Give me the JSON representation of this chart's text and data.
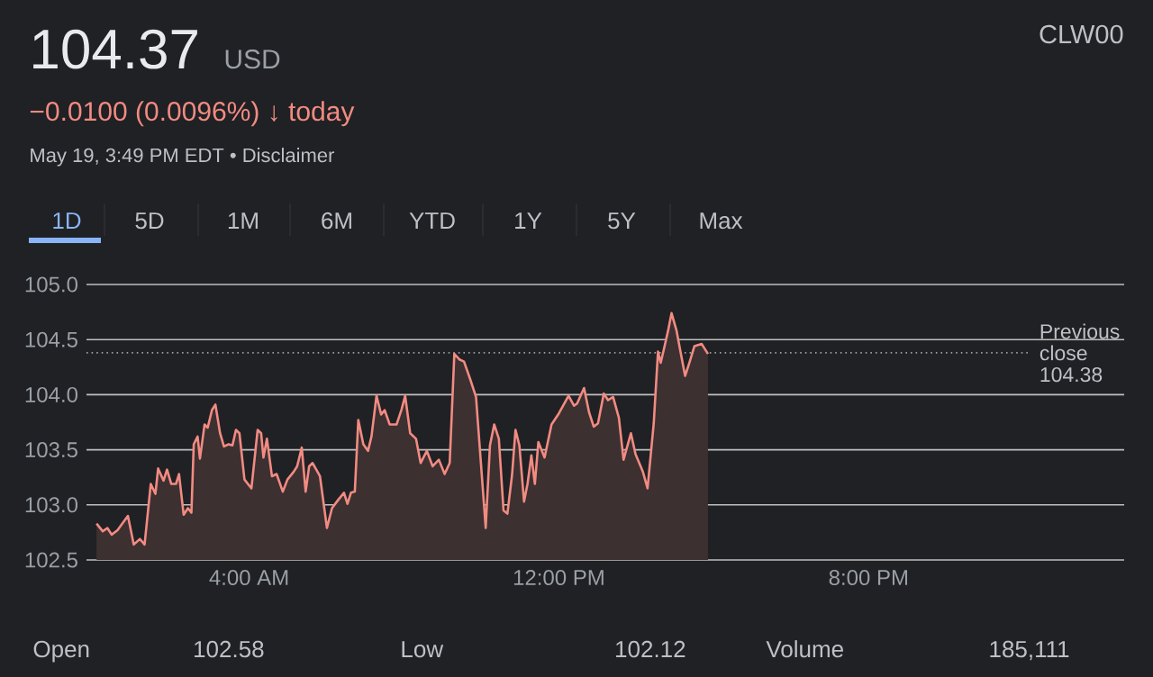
{
  "chart_data": {
    "type": "area",
    "title": "104.37",
    "subtitle": "−0.0100 (0.0096%) ↓ today",
    "annotations": [
      "USD",
      "May 19, 3:49 PM EDT • Disclaimer",
      "CLW00",
      "1D",
      "5D",
      "1M",
      "6M",
      "YTD",
      "1Y",
      "5Y",
      "Max",
      "Open",
      "102.58",
      "Low",
      "102.12",
      "Volume",
      "185,111"
    ],
    "x": [
      0.06,
      0.22,
      0.34,
      0.45,
      0.6,
      0.87,
      1.02,
      1.18,
      1.3,
      1.46,
      1.58,
      1.65,
      1.79,
      1.88,
      1.99,
      2.11,
      2.19,
      2.31,
      2.42,
      2.51,
      2.57,
      2.67,
      2.73,
      2.85,
      2.93,
      3.04,
      3.13,
      3.25,
      3.35,
      3.47,
      3.57,
      3.66,
      3.75,
      3.88,
      4.06,
      4.22,
      4.31,
      4.37,
      4.46,
      4.59,
      4.71,
      4.87,
      4.99,
      5.15,
      5.24,
      5.36,
      5.46,
      5.55,
      5.64,
      5.83,
      6.01,
      6.14,
      6.29,
      6.45,
      6.54,
      6.63,
      6.73,
      6.82,
      6.95,
      7.07,
      7.16,
      7.29,
      7.41,
      7.5,
      7.63,
      7.81,
      7.94,
      8.03,
      8.16,
      8.31,
      8.43,
      8.59,
      8.74,
      8.9,
      9.05,
      9.18,
      9.3,
      9.43,
      9.55,
      9.71,
      9.86,
      9.98,
      10.11,
      10.22,
      10.33,
      10.45,
      10.57,
      10.67,
      10.79,
      10.88,
      10.98,
      11.1,
      11.19,
      11.29,
      11.38,
      11.47,
      11.63,
      11.81,
      12.0,
      12.25,
      12.39,
      12.47,
      12.65,
      12.78,
      12.9,
      13.01,
      13.16,
      13.27,
      13.4,
      13.55,
      13.67,
      13.86,
      13.98,
      14.17,
      14.29,
      14.45,
      14.56,
      14.63,
      14.71,
      14.82,
      14.91,
      15.04,
      15.13,
      15.26,
      15.38,
      15.5,
      15.69,
      15.85
    ],
    "series": [
      {
        "color": "#f28b82",
        "values": [
          102.83,
          102.76,
          102.79,
          102.73,
          102.77,
          102.9,
          102.64,
          102.69,
          102.64,
          103.19,
          103.1,
          103.33,
          103.22,
          103.32,
          103.19,
          103.19,
          103.28,
          102.91,
          102.97,
          102.93,
          103.55,
          103.62,
          103.42,
          103.73,
          103.7,
          103.86,
          103.91,
          103.65,
          103.53,
          103.55,
          103.54,
          103.68,
          103.65,
          103.23,
          103.15,
          103.68,
          103.65,
          103.43,
          103.6,
          103.26,
          103.28,
          103.12,
          103.23,
          103.3,
          103.35,
          103.52,
          103.12,
          103.35,
          103.38,
          103.26,
          102.79,
          102.97,
          103.04,
          103.11,
          103.01,
          103.11,
          103.12,
          103.77,
          103.55,
          103.49,
          103.62,
          103.99,
          103.82,
          103.86,
          103.73,
          103.73,
          103.87,
          103.99,
          103.65,
          103.6,
          103.38,
          103.49,
          103.35,
          103.41,
          103.28,
          103.38,
          104.37,
          104.32,
          104.3,
          104.14,
          103.98,
          103.41,
          102.79,
          103.54,
          103.73,
          103.6,
          102.95,
          102.92,
          103.27,
          103.68,
          103.54,
          103.03,
          103.19,
          103.45,
          103.19,
          103.57,
          103.43,
          103.73,
          103.83,
          103.99,
          103.9,
          103.92,
          104.06,
          103.84,
          103.71,
          103.74,
          104.01,
          103.95,
          103.98,
          103.79,
          103.41,
          103.65,
          103.46,
          103.3,
          103.15,
          103.74,
          104.39,
          104.29,
          104.41,
          104.58,
          104.74,
          104.58,
          104.41,
          104.17,
          104.3,
          104.44,
          104.46,
          104.37
        ]
      }
    ],
    "xlim": [
      -0.2,
      26.6
    ],
    "ylim": [
      102.5,
      105.0
    ],
    "xticks": [
      {
        "value": 4,
        "label": "4:00 AM"
      },
      {
        "value": 12,
        "label": "12:00 PM"
      },
      {
        "value": 20,
        "label": "8:00 PM"
      }
    ],
    "yticks": [
      {
        "value": 102.5,
        "label": "102.5"
      },
      {
        "value": 103.0,
        "label": "103.0"
      },
      {
        "value": 103.5,
        "label": "103.5"
      },
      {
        "value": 104.0,
        "label": "104.0"
      },
      {
        "value": 104.5,
        "label": "104.5"
      },
      {
        "value": 105.0,
        "label": "105.0"
      }
    ],
    "grid": "y",
    "ref_lines": [
      {
        "axis": "y",
        "value": 104.38,
        "label": "Previous close 104.38",
        "color": "#9aa0a6",
        "line_style": "dotted"
      }
    ]
  }
}
